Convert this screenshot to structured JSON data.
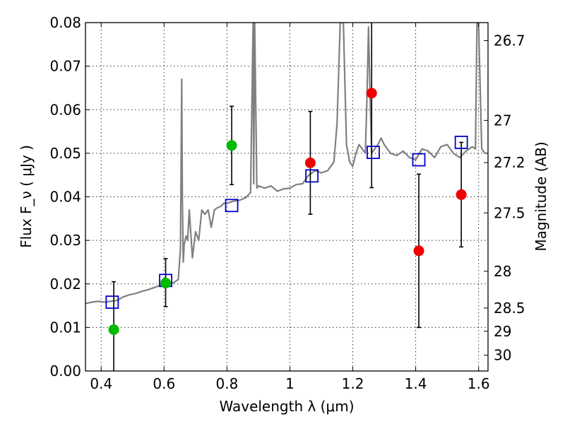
{
  "chart_data": {
    "type": "scatter",
    "xlabel": "Wavelength  λ (μm)",
    "ylabel": "Flux  F_ν  ( μJy )",
    "ylabel_right": "Magnitude (AB)",
    "xlim": [
      0.35,
      1.63
    ],
    "ylim": [
      0.0,
      0.08
    ],
    "grid": true,
    "x_ticks": [
      0.4,
      0.6,
      0.8,
      1.0,
      1.2,
      1.4,
      1.6
    ],
    "x_tick_labels": [
      "0.4",
      "0.6",
      "0.8",
      "1",
      "1.2",
      "1.4",
      "1.6"
    ],
    "y_ticks": [
      0.0,
      0.01,
      0.02,
      0.03,
      0.04,
      0.05,
      0.06,
      0.07,
      0.08
    ],
    "y_tick_labels": [
      "0.00",
      "0.01",
      "0.02",
      "0.03",
      "0.04",
      "0.05",
      "0.06",
      "0.07",
      "0.08"
    ],
    "right_ticks": [
      {
        "label": "26.7",
        "mag": 26.7
      },
      {
        "label": "27",
        "mag": 27.0
      },
      {
        "label": "27.2",
        "mag": 27.2
      },
      {
        "label": "27.5",
        "mag": 27.5
      },
      {
        "label": "28",
        "mag": 28.0
      },
      {
        "label": "28.5",
        "mag": 28.5
      },
      {
        "label": "29",
        "mag": 29.0
      },
      {
        "label": "30",
        "mag": 30.0
      }
    ],
    "series": [
      {
        "kind": "line",
        "color": "#808080",
        "x": [
          0.35,
          0.37,
          0.39,
          0.41,
          0.43,
          0.45,
          0.47,
          0.49,
          0.51,
          0.53,
          0.55,
          0.57,
          0.59,
          0.61,
          0.63,
          0.645,
          0.652,
          0.656,
          0.658,
          0.661,
          0.664,
          0.67,
          0.675,
          0.68,
          0.69,
          0.7,
          0.71,
          0.72,
          0.73,
          0.74,
          0.75,
          0.76,
          0.77,
          0.78,
          0.79,
          0.8,
          0.82,
          0.84,
          0.86,
          0.875,
          0.883,
          0.885,
          0.888,
          0.895,
          0.9,
          0.92,
          0.94,
          0.96,
          0.98,
          1.0,
          1.02,
          1.04,
          1.06,
          1.08,
          1.1,
          1.12,
          1.14,
          1.15,
          1.16,
          1.17,
          1.18,
          1.19,
          1.2,
          1.21,
          1.22,
          1.24,
          1.245,
          1.25,
          1.255,
          1.26,
          1.28,
          1.29,
          1.3,
          1.32,
          1.34,
          1.36,
          1.38,
          1.4,
          1.42,
          1.44,
          1.46,
          1.48,
          1.5,
          1.52,
          1.54,
          1.56,
          1.58,
          1.59,
          1.595,
          1.6,
          1.61,
          1.62,
          1.63
        ],
        "y": [
          0.0155,
          0.0158,
          0.016,
          0.0158,
          0.016,
          0.0162,
          0.017,
          0.0175,
          0.0178,
          0.0183,
          0.0187,
          0.0192,
          0.0197,
          0.0198,
          0.0203,
          0.021,
          0.028,
          0.067,
          0.04,
          0.025,
          0.029,
          0.031,
          0.03,
          0.037,
          0.026,
          0.032,
          0.03,
          0.037,
          0.036,
          0.037,
          0.033,
          0.037,
          0.0375,
          0.0378,
          0.0385,
          0.0385,
          0.039,
          0.0392,
          0.0398,
          0.041,
          0.08,
          0.043,
          0.08,
          0.042,
          0.0425,
          0.042,
          0.0425,
          0.0413,
          0.0418,
          0.042,
          0.0428,
          0.043,
          0.045,
          0.046,
          0.0455,
          0.046,
          0.048,
          0.057,
          0.08,
          0.08,
          0.052,
          0.048,
          0.047,
          0.05,
          0.052,
          0.05,
          0.063,
          0.079,
          0.063,
          0.05,
          0.052,
          0.0535,
          0.052,
          0.05,
          0.0495,
          0.0505,
          0.049,
          0.0485,
          0.051,
          0.0505,
          0.049,
          0.0515,
          0.052,
          0.05,
          0.049,
          0.0505,
          0.0515,
          0.051,
          0.08,
          0.08,
          0.051,
          0.05,
          0.05
        ]
      },
      {
        "kind": "open-square",
        "color": "#0000cc",
        "x": [
          0.435,
          0.605,
          0.815,
          1.07,
          1.265,
          1.41,
          1.545
        ],
        "y": [
          0.0158,
          0.0208,
          0.038,
          0.0448,
          0.0502,
          0.0485,
          0.0525
        ]
      },
      {
        "kind": "filled-circle",
        "color": "#00bb00",
        "x": [
          0.44,
          0.605,
          0.815
        ],
        "y": [
          0.0095,
          0.0202,
          0.0518
        ]
      },
      {
        "kind": "filled-circle",
        "color": "#ee0000",
        "x": [
          1.065,
          1.26,
          1.41,
          1.545
        ],
        "y": [
          0.0478,
          0.0638,
          0.0276,
          0.0405
        ]
      }
    ],
    "errorbars": [
      {
        "x": 0.44,
        "low": 0.0,
        "high": 0.0205
      },
      {
        "x": 0.605,
        "low": 0.0148,
        "high": 0.0258
      },
      {
        "x": 0.815,
        "low": 0.0428,
        "high": 0.0608
      },
      {
        "x": 1.065,
        "low": 0.036,
        "high": 0.0596
      },
      {
        "x": 1.26,
        "low": 0.0421,
        "high": 0.08
      },
      {
        "x": 1.41,
        "low": 0.01,
        "high": 0.0452
      },
      {
        "x": 1.545,
        "low": 0.0285,
        "high": 0.0525
      }
    ]
  }
}
